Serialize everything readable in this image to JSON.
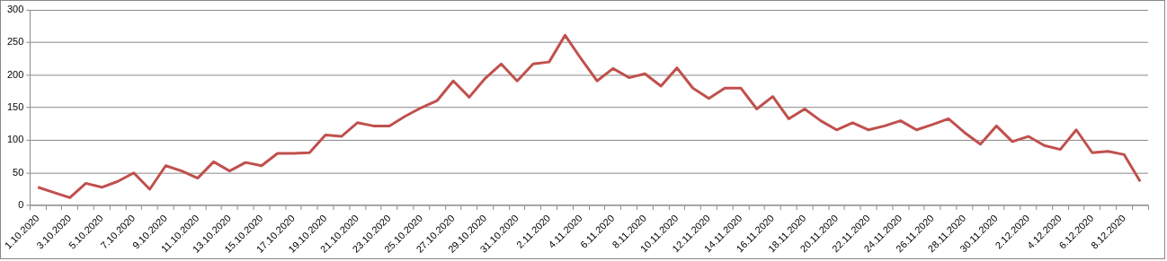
{
  "chart_data": {
    "type": "line",
    "categories": [
      "1.10.2020",
      null,
      "3.10.2020",
      null,
      "5.10.2020",
      null,
      "7.10.2020",
      null,
      "9.10.2020",
      null,
      "11.10.2020",
      null,
      "13.10.2020",
      null,
      "15.10.2020",
      null,
      "17.10.2020",
      null,
      "19.10.2020",
      null,
      "21.10.2020",
      null,
      "23.10.2020",
      null,
      "25.10.2020",
      null,
      "27.10.2020",
      null,
      "29.10.2020",
      null,
      "31.10.2020",
      null,
      "2.11.2020",
      null,
      "4.11.2020",
      null,
      "6.11.2020",
      null,
      "8.11.2020",
      null,
      "10.11.2020",
      null,
      "12.11.2020",
      null,
      "14.11.2020",
      null,
      "16.11.2020",
      null,
      "18.11.2020",
      null,
      "20.11.2020",
      null,
      "22.11.2020",
      null,
      "24.11.2020",
      null,
      "26.11.2020",
      null,
      "28.11.2020",
      null,
      "30.11.2020",
      null,
      "2.12.2020",
      null,
      "4.12.2020",
      null,
      "6.12.2020",
      null,
      "8.12.2020",
      null
    ],
    "series": [
      {
        "color": "#c0504d",
        "values": [
          28,
          20,
          12,
          34,
          28,
          37,
          50,
          25,
          61,
          53,
          42,
          67,
          53,
          66,
          61,
          80,
          80,
          81,
          108,
          106,
          127,
          122,
          122,
          137,
          150,
          161,
          191,
          166,
          195,
          217,
          191,
          217,
          220,
          261,
          225,
          191,
          210,
          196,
          202,
          183,
          211,
          180,
          164,
          180,
          180,
          148,
          167,
          133,
          148,
          130,
          116,
          127,
          116,
          122,
          130,
          116,
          124,
          133,
          112,
          94,
          122,
          98,
          106,
          92,
          86,
          116,
          81,
          83,
          78,
          37
        ]
      }
    ],
    "ylim": [
      0,
      300
    ],
    "yticks": [
      0,
      50,
      100,
      150,
      200,
      250,
      300
    ],
    "grid": "y",
    "legend": false,
    "marker": "none",
    "line_style": "solid"
  }
}
